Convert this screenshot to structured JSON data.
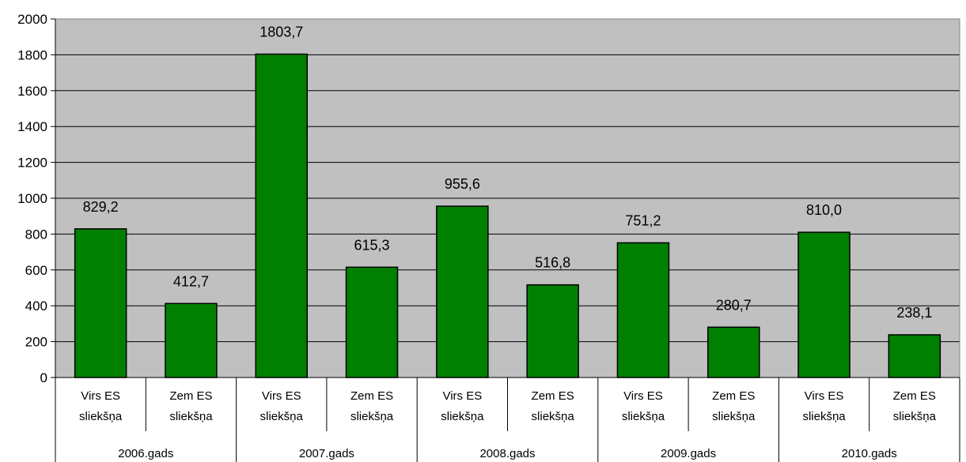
{
  "chart_data": {
    "type": "bar",
    "title": "",
    "xlabel": "",
    "ylabel": "",
    "ylim": [
      0,
      2000
    ],
    "yticks": [
      0,
      200,
      400,
      600,
      800,
      1000,
      1200,
      1400,
      1600,
      1800,
      2000
    ],
    "grid": true,
    "legend": "none",
    "bar_color": "#008000",
    "plot_background": "#c0c0c0",
    "categories": [
      {
        "line1": "Virs ES",
        "line2": "sliekšņa",
        "group": "2006.gads"
      },
      {
        "line1": "Zem ES",
        "line2": "sliekšņa",
        "group": "2006.gads"
      },
      {
        "line1": "Virs ES",
        "line2": "sliekšņa",
        "group": "2007.gads"
      },
      {
        "line1": "Zem ES",
        "line2": "sliekšņa",
        "group": "2007.gads"
      },
      {
        "line1": "Virs ES",
        "line2": "sliekšņa",
        "group": "2008.gads"
      },
      {
        "line1": "Zem ES",
        "line2": "sliekšņa",
        "group": "2008.gads"
      },
      {
        "line1": "Virs ES",
        "line2": "sliekšņa",
        "group": "2009.gads"
      },
      {
        "line1": "Zem ES",
        "line2": "sliekšņa",
        "group": "2009.gads"
      },
      {
        "line1": "Virs ES",
        "line2": "sliekšņa",
        "group": "2010.gads"
      },
      {
        "line1": "Zem ES",
        "line2": "sliekšņa",
        "group": "2010.gads"
      }
    ],
    "groups": [
      "2006.gads",
      "2007.gads",
      "2008.gads",
      "2009.gads",
      "2010.gads"
    ],
    "values": [
      829.2,
      412.7,
      1803.7,
      615.3,
      955.6,
      516.8,
      751.2,
      280.7,
      810.0,
      238.1
    ],
    "data_labels": [
      "829,2",
      "412,7",
      "1803,7",
      "615,3",
      "955,6",
      "516,8",
      "751,2",
      "280,7",
      "810,0",
      "238,1"
    ]
  }
}
